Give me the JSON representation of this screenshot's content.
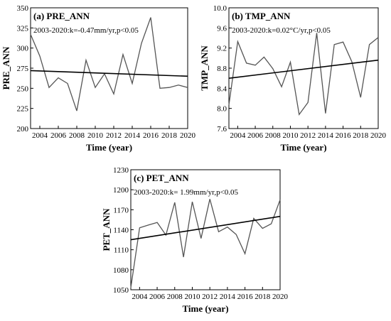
{
  "chart_data": [
    {
      "type": "line",
      "title": "(a) PRE_ANN",
      "annotation": "2003-2020:k=-0.47mm/yr,p<0.05",
      "xlabel": "Time (year)",
      "ylabel": "PRE_ANN",
      "xlim": [
        2003,
        2020
      ],
      "ylim": [
        200,
        350
      ],
      "xticks": [
        2004,
        2006,
        2008,
        2010,
        2012,
        2014,
        2016,
        2018,
        2020
      ],
      "yticks": [
        200,
        225,
        250,
        275,
        300,
        325,
        350
      ],
      "x": [
        2003,
        2004,
        2005,
        2006,
        2007,
        2008,
        2009,
        2010,
        2011,
        2012,
        2013,
        2014,
        2015,
        2016,
        2017,
        2018,
        2019,
        2020
      ],
      "series": [
        {
          "values": [
            317,
            290,
            251,
            263,
            256,
            222,
            285,
            251,
            268,
            243,
            292,
            256,
            306,
            338,
            250,
            251,
            254,
            251
          ]
        }
      ],
      "trend": [
        272,
        265
      ]
    },
    {
      "type": "line",
      "title": "(b) TMP_ANN",
      "annotation": "2003-2020:k=0.02°C/yr,p<0.05",
      "xlabel": "Time (year)",
      "ylabel": "TMP_ANN",
      "xlim": [
        2003,
        2020
      ],
      "ylim": [
        7.6,
        10.0
      ],
      "xticks": [
        2004,
        2006,
        2008,
        2010,
        2012,
        2014,
        2016,
        2018,
        2020
      ],
      "yticks": [
        "7.6",
        "8.0",
        "8.4",
        "8.8",
        "9.2",
        "9.6",
        "10.0"
      ],
      "x": [
        2003,
        2004,
        2005,
        2006,
        2007,
        2008,
        2009,
        2010,
        2011,
        2012,
        2013,
        2014,
        2015,
        2016,
        2017,
        2018,
        2019,
        2020
      ],
      "series": [
        {
          "values": [
            8.07,
            9.33,
            8.9,
            8.86,
            9.02,
            8.79,
            8.43,
            8.92,
            7.88,
            8.12,
            9.5,
            7.9,
            9.27,
            9.32,
            8.93,
            8.22,
            9.27,
            9.41
          ]
        }
      ],
      "trend": [
        8.6,
        8.96
      ]
    },
    {
      "type": "line",
      "title": "(c) PET_ANN",
      "annotation": "2003-2020:k= 1.99mm/yr,p<0.05",
      "xlabel": "Time (year)",
      "ylabel": "PET_ANN",
      "xlim": [
        2003,
        2020
      ],
      "ylim": [
        1050,
        1230
      ],
      "xticks": [
        2004,
        2006,
        2008,
        2010,
        2012,
        2014,
        2016,
        2018,
        2020
      ],
      "yticks": [
        1050,
        1080,
        1110,
        1140,
        1170,
        1200,
        1230
      ],
      "x": [
        2003,
        2004,
        2005,
        2006,
        2007,
        2008,
        2009,
        2010,
        2011,
        2012,
        2013,
        2014,
        2015,
        2016,
        2017,
        2018,
        2019,
        2020
      ],
      "series": [
        {
          "values": [
            1053,
            1143,
            1147,
            1151,
            1132,
            1181,
            1099,
            1182,
            1127,
            1186,
            1137,
            1144,
            1133,
            1104,
            1157,
            1142,
            1149,
            1185
          ]
        }
      ],
      "trend": [
        1125,
        1160
      ]
    }
  ]
}
